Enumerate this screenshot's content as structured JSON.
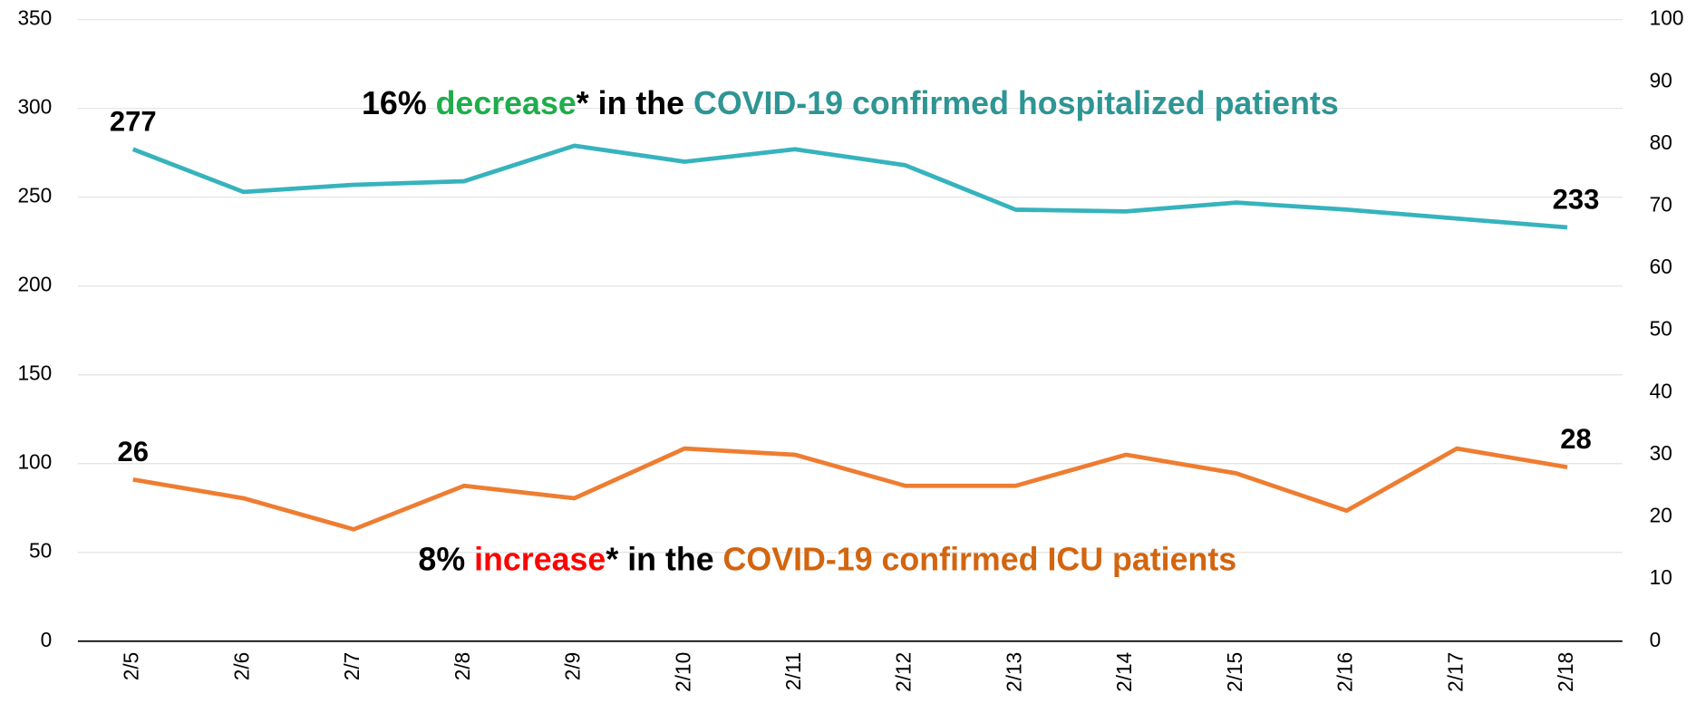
{
  "chart_data": {
    "type": "line",
    "categories": [
      "2/5",
      "2/6",
      "2/7",
      "2/8",
      "2/9",
      "2/10",
      "2/11",
      "2/12",
      "2/13",
      "2/14",
      "2/15",
      "2/16",
      "2/17",
      "2/18"
    ],
    "series": [
      {
        "name": "COVID-19 confirmed hospitalized patients",
        "color": "#36b3bd",
        "axis": "y",
        "values": [
          277,
          253,
          257,
          259,
          279,
          270,
          277,
          268,
          243,
          242,
          247,
          243,
          238,
          233
        ]
      },
      {
        "name": "COVID-19 confirmed ICU patients",
        "color": "#ee7d31",
        "axis": "y2",
        "values": [
          26,
          23,
          18,
          25,
          23,
          31,
          30,
          25,
          25,
          30,
          27,
          21,
          31,
          28
        ]
      }
    ],
    "ylim": [
      0,
      350
    ],
    "yticks": [
      0,
      50,
      100,
      150,
      200,
      250,
      300,
      350
    ],
    "y2lim": [
      0,
      100
    ],
    "y2ticks": [
      0,
      10,
      20,
      30,
      40,
      50,
      60,
      70,
      80,
      90,
      100
    ],
    "grid": true,
    "annotations": [
      [
        {
          "text": "16% ",
          "color": "#000000"
        },
        {
          "text": "decrease",
          "color": "#1fad4b"
        },
        {
          "text": "* in the ",
          "color": "#000000"
        },
        {
          "text": "COVID-19 confirmed hospitalized patients",
          "color": "#2e9594"
        }
      ],
      [
        {
          "text": "8% ",
          "color": "#000000"
        },
        {
          "text": "increase",
          "color": "#ff0000"
        },
        {
          "text": "* in the ",
          "color": "#000000"
        },
        {
          "text": "COVID-19 confirmed ICU patients",
          "color": "#d3650f"
        }
      ]
    ]
  }
}
